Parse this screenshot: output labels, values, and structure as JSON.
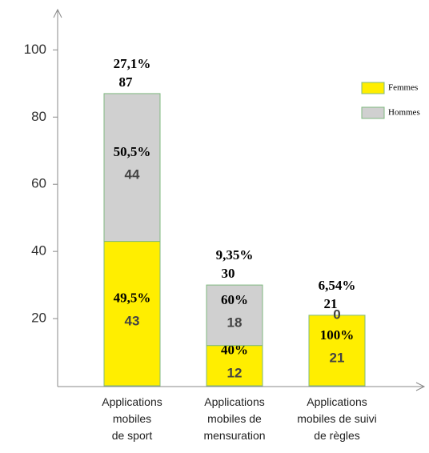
{
  "chart_data": {
    "type": "stacked_bar",
    "categories": [
      "Applications\nmobiles\nde sport",
      "Applications\nmobiles de\nmensuration",
      "Applications\nmobiles de suivi\nde règles"
    ],
    "series": [
      {
        "name": "Femmes",
        "color": "#ffee00",
        "values": [
          43,
          12,
          21
        ],
        "share_labels": [
          "49,5%",
          "40%",
          "100%"
        ]
      },
      {
        "name": "Hommes",
        "color": "#d0d0d0",
        "values": [
          44,
          18,
          0
        ],
        "share_labels": [
          "50,5%",
          "60%",
          null
        ]
      }
    ],
    "totals": [
      87,
      30,
      21
    ],
    "total_share_labels": [
      "27,1%",
      "9,35%",
      "6,54%"
    ],
    "ylim": [
      0,
      112
    ],
    "yticks": [
      20,
      40,
      60,
      80,
      100
    ],
    "legend": "right"
  }
}
